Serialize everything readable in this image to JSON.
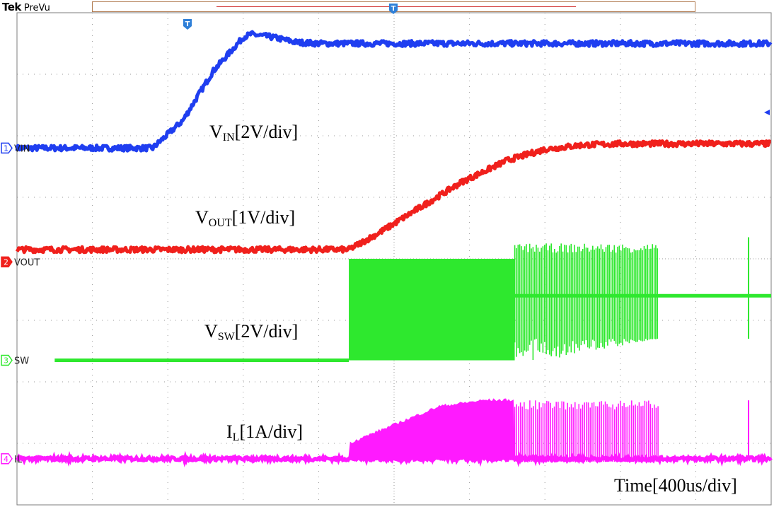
{
  "brand": {
    "name": "Tek",
    "mode": "PreVu"
  },
  "trigger_marker": "T",
  "chart_data": {
    "type": "line",
    "title": "",
    "xlabel": "Time[400us/div]",
    "time_per_div_us": 400,
    "x_unit": "div",
    "xlim": [
      -5,
      5
    ],
    "ylim": [
      -4,
      4
    ],
    "grid": true,
    "channels": [
      {
        "number": "1",
        "name": "VIN",
        "label": "V",
        "sub": "IN",
        "scale": "[2V/div]",
        "color": "#1f3ef0",
        "offset_div": 1.8
      },
      {
        "number": "2",
        "name": "VOUT",
        "label": "V",
        "sub": "OUT",
        "scale": "[1V/div]",
        "color": "#f0201c",
        "offset_div": -0.05
      },
      {
        "number": "3",
        "name": "SW",
        "label": "V",
        "sub": "SW",
        "scale": "[2V/div]",
        "color": "#2ee82e",
        "offset_div": -1.65
      },
      {
        "number": "4",
        "name": "IL",
        "label": "I",
        "sub": "L",
        "scale": "[1A/div]",
        "color": "#ff1aff",
        "offset_div": -3.25
      }
    ],
    "series": [
      {
        "name": "VIN",
        "x": [
          -5,
          -3.2,
          -2.8,
          -2.4,
          -2.0,
          -1.9,
          -1.6,
          -1.3,
          -1.0,
          5
        ],
        "y": [
          1.8,
          1.8,
          2.25,
          3.05,
          3.6,
          3.65,
          3.6,
          3.52,
          3.5,
          3.5
        ]
      },
      {
        "name": "VOUT",
        "x": [
          -5,
          -0.6,
          -0.2,
          0.3,
          0.9,
          1.5,
          2.0,
          2.5,
          3.0,
          5
        ],
        "y": [
          0.15,
          0.15,
          0.42,
          0.8,
          1.25,
          1.6,
          1.78,
          1.85,
          1.87,
          1.87
        ]
      },
      {
        "name": "SW",
        "x": [
          -4.5,
          -0.6,
          -0.6,
          1.6,
          3.5,
          4.7,
          5
        ],
        "y": [
          -1.65,
          -1.65,
          0.0,
          0.0,
          -0.6,
          -0.6,
          -0.6
        ],
        "note_low": [
          -1.65,
          -1.0
        ]
      },
      {
        "name": "IL",
        "x": [
          -5,
          -0.6,
          -0.6,
          0.0,
          0.6,
          1.2,
          1.6,
          3.5,
          5
        ],
        "y": [
          -3.25,
          -3.25,
          -3.0,
          -2.7,
          -2.4,
          -2.3,
          -2.3,
          -3.25,
          -3.25
        ]
      }
    ]
  }
}
